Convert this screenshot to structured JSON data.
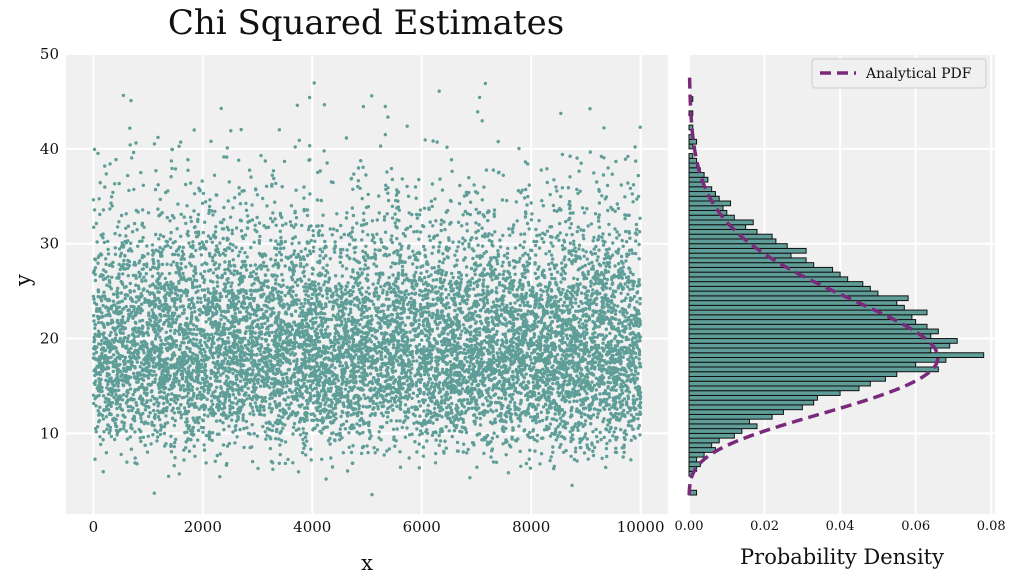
{
  "colors": {
    "panel_bg": "#f0f0f0",
    "grid": "#ffffff",
    "point": "#5f9e98",
    "bar_fill": "#5f9e98",
    "bar_edge": "#111111",
    "pdf_line": "#7b2a7b"
  },
  "chart_data": [
    {
      "type": "scatter",
      "title": "Chi Squared Estimates",
      "xlabel": "x",
      "ylabel": "y",
      "xlim": [
        -500,
        10500
      ],
      "ylim": [
        1.5,
        50
      ],
      "xticks": [
        0,
        2000,
        4000,
        6000,
        8000,
        10000
      ],
      "yticks": [
        10,
        20,
        30,
        40,
        50
      ],
      "grid": true,
      "n_points": 10000,
      "distribution_note_visible": false,
      "series": [
        {
          "marker": "dot",
          "x_range": [
            0,
            10000
          ],
          "y_center": 18,
          "y_spread": 6,
          "y_min": 3.5,
          "y_max": 48
        }
      ]
    },
    {
      "type": "bar",
      "orientation": "horizontal",
      "xlabel": "Probability Density",
      "xlim": [
        0,
        0.081
      ],
      "ylim": [
        1.5,
        50
      ],
      "xticks": [
        "0.00",
        "0.02",
        "0.04",
        "0.06",
        "0.08"
      ],
      "grid": true,
      "legend": {
        "placement": "top-right",
        "entries": [
          "Analytical PDF"
        ]
      },
      "bins": {
        "edges_start": 3.5,
        "bin_width": 0.5,
        "densities": [
          0.002,
          0.0,
          0.0,
          0.0,
          0.001,
          0.002,
          0.003,
          0.002,
          0.004,
          0.007,
          0.006,
          0.008,
          0.012,
          0.014,
          0.018,
          0.016,
          0.022,
          0.025,
          0.03,
          0.033,
          0.034,
          0.04,
          0.045,
          0.048,
          0.052,
          0.055,
          0.066,
          0.06,
          0.068,
          0.078,
          0.064,
          0.069,
          0.071,
          0.064,
          0.066,
          0.063,
          0.06,
          0.059,
          0.063,
          0.057,
          0.055,
          0.058,
          0.05,
          0.048,
          0.046,
          0.042,
          0.04,
          0.038,
          0.033,
          0.031,
          0.027,
          0.031,
          0.026,
          0.023,
          0.022,
          0.018,
          0.015,
          0.017,
          0.012,
          0.01,
          0.009,
          0.011,
          0.008,
          0.007,
          0.006,
          0.004,
          0.005,
          0.004,
          0.003,
          0.002,
          0.002,
          0.001,
          0.0,
          0.001,
          0.002,
          0.001,
          0.0,
          0.001,
          0.0,
          0.0,
          0.001,
          0.0,
          0.0,
          0.001,
          0.0,
          0.0,
          0.0,
          0.0,
          0.0
        ]
      },
      "pdf_curve": {
        "name": "Analytical PDF",
        "style": "dashed",
        "degrees_of_freedom": 20,
        "y_range": [
          3.5,
          48
        ]
      }
    }
  ]
}
